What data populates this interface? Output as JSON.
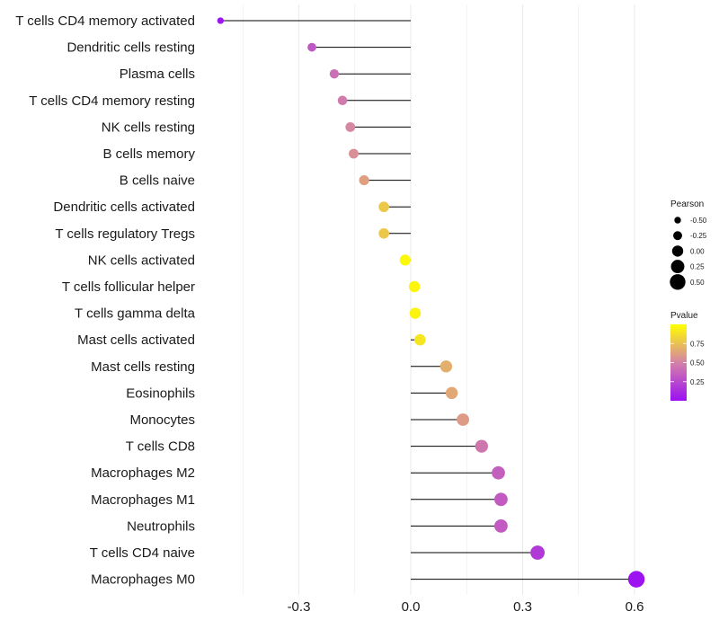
{
  "chart_data": {
    "type": "lollipop",
    "title": "",
    "xlabel": "",
    "ylabel": "",
    "xlim": [
      -0.5,
      0.65
    ],
    "x_ticks": [
      -0.3,
      0.0,
      0.3,
      0.6
    ],
    "x_tick_labels": [
      "-0.3",
      "0.0",
      "0.3",
      "0.6"
    ],
    "grid": true,
    "categories": [
      "T cells CD4 memory activated",
      "Dendritic cells resting",
      "Plasma cells",
      "T cells CD4 memory resting",
      "NK cells resting",
      "B cells memory",
      "B cells naive",
      "Dendritic cells activated",
      "T cells regulatory  Tregs ",
      "NK cells activated",
      "T cells follicular helper",
      "T cells gamma delta",
      "Mast cells activated",
      "Mast cells resting",
      "Eosinophils",
      "Monocytes",
      "T cells CD8",
      "Macrophages M2",
      "Macrophages M1",
      "Neutrophils",
      "T cells CD4 naive",
      "Macrophages M0"
    ],
    "pearson": [
      -0.51,
      -0.265,
      -0.205,
      -0.183,
      -0.162,
      -0.153,
      -0.125,
      -0.072,
      -0.072,
      -0.015,
      0.01,
      0.012,
      0.025,
      0.095,
      0.11,
      0.14,
      0.19,
      0.235,
      0.242,
      0.242,
      0.34,
      0.605
    ],
    "pvalue": [
      0.02,
      0.32,
      0.42,
      0.47,
      0.52,
      0.55,
      0.62,
      0.78,
      0.78,
      0.97,
      0.96,
      0.95,
      0.9,
      0.68,
      0.65,
      0.6,
      0.45,
      0.35,
      0.33,
      0.33,
      0.18,
      0.01
    ],
    "legend_size": {
      "title": "Pearson",
      "labels": [
        "-0.50",
        "-0.25",
        "0.00",
        "0.25",
        "0.50"
      ],
      "values": [
        -0.5,
        -0.25,
        0.0,
        0.25,
        0.5
      ]
    },
    "legend_color": {
      "title": "Pvalue",
      "labels": [
        "0.75",
        "0.50",
        "0.25"
      ],
      "values": [
        0.75,
        0.5,
        0.25
      ],
      "range": [
        0.0,
        1.0
      ],
      "low_color": "#9b10f2",
      "high_color": "#ffff00"
    },
    "legend_position": "right",
    "colors": {
      "stem": "#000000",
      "grid": "#ebebeb",
      "legend_dot": "#000000"
    }
  }
}
